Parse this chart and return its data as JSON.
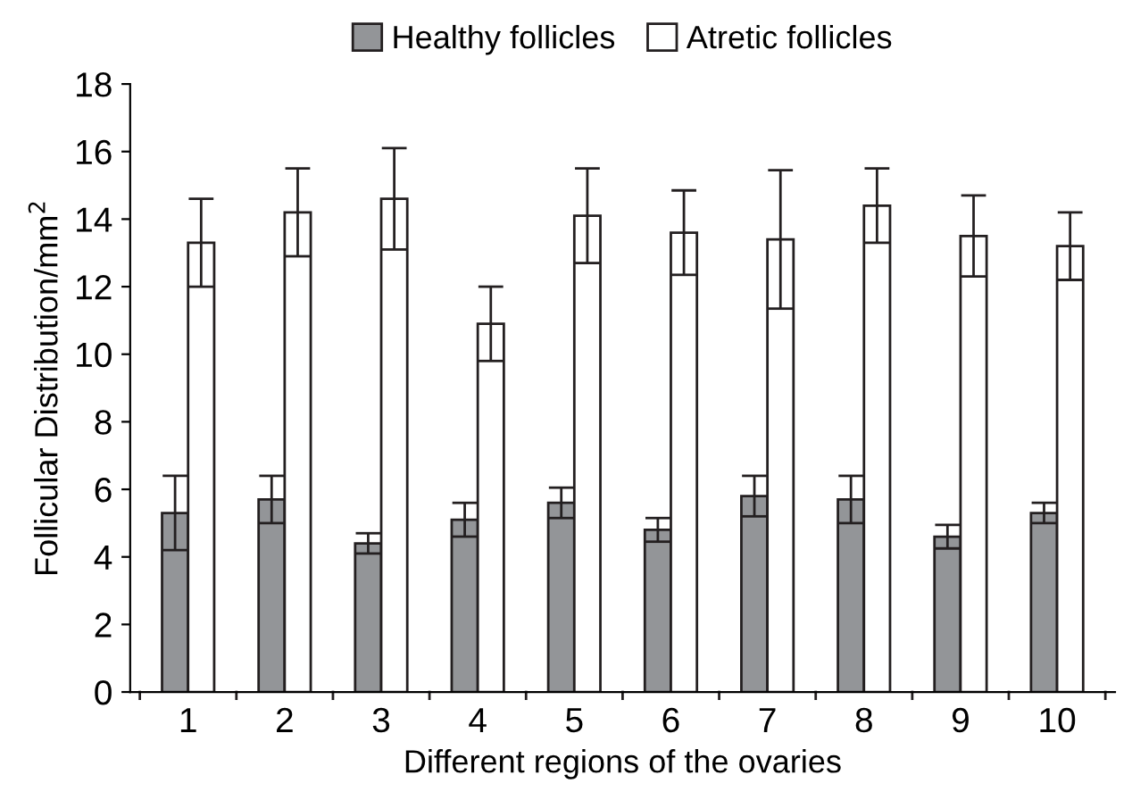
{
  "chart_data": {
    "type": "bar",
    "xlabel": "Different regions of the ovaries",
    "ylabel": "Follicular Distribution/mm$^{2}$",
    "categories": [
      "1",
      "2",
      "3",
      "4",
      "5",
      "6",
      "7",
      "8",
      "9",
      "10"
    ],
    "series": [
      {
        "name": "Healthy follicles",
        "color": "#939598",
        "values": [
          5.3,
          5.7,
          4.4,
          5.1,
          5.6,
          4.8,
          5.8,
          5.7,
          4.6,
          5.3
        ],
        "errors": [
          1.1,
          0.7,
          0.3,
          0.5,
          0.45,
          0.35,
          0.6,
          0.7,
          0.35,
          0.3
        ]
      },
      {
        "name": "Atretic follicles",
        "color": "#ffffff",
        "values": [
          13.3,
          14.2,
          14.6,
          10.9,
          14.1,
          13.6,
          13.4,
          14.4,
          13.5,
          13.2
        ],
        "errors": [
          1.3,
          1.3,
          1.5,
          1.1,
          1.4,
          1.25,
          2.05,
          1.1,
          1.2,
          1.0
        ]
      }
    ],
    "ylim": [
      0,
      18
    ],
    "yticks": [
      0,
      2,
      4,
      6,
      8,
      10,
      12,
      14,
      16,
      18
    ],
    "grid": false,
    "legend": "top"
  }
}
